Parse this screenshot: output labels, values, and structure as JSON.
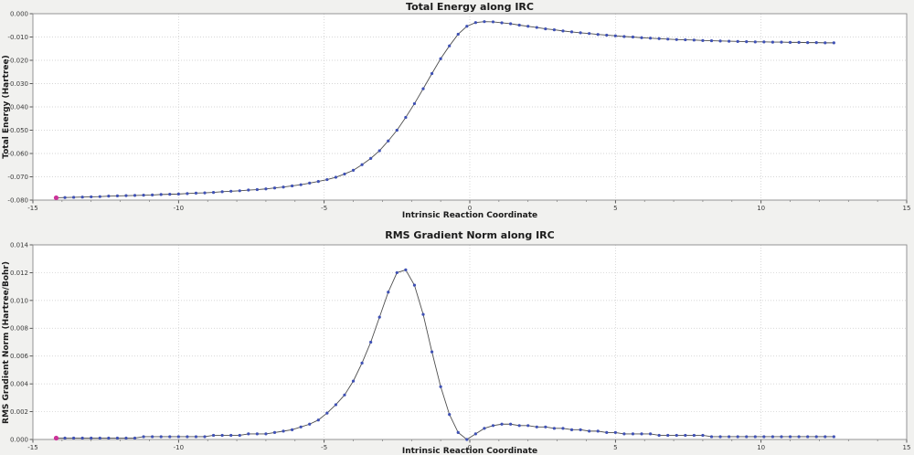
{
  "figure": {
    "background_color": "#f1f1ef",
    "plot_background_color": "#ffffff",
    "grid_color": "#c9c9c9",
    "spine_color": "#8a8a8a"
  },
  "chart_data": [
    {
      "id": "total-energy",
      "type": "line",
      "title": "Total Energy along IRC",
      "xlabel": "Intrinsic Reaction Coordinate",
      "ylabel": "Total Energy (Hartree)",
      "xlim": [
        -15,
        15
      ],
      "ylim": [
        -0.08,
        0.0
      ],
      "xtick_values": [
        -15,
        -10,
        -5,
        0,
        5,
        10,
        15
      ],
      "xtick_labels": [
        "-15",
        "-10",
        "-5",
        "0",
        "5",
        "10",
        "15"
      ],
      "ytick_values": [
        0.0,
        -0.01,
        -0.02,
        -0.03,
        -0.04,
        -0.05,
        -0.06,
        -0.07,
        -0.08
      ],
      "ytick_labels": [
        "0.000",
        "-0.010",
        "-0.020",
        "-0.030",
        "-0.040",
        "-0.050",
        "-0.060",
        "-0.070",
        "-0.080"
      ],
      "minor_xtick_step": 1,
      "grid": true,
      "legend": false,
      "line_color": "#4d4d4d",
      "marker_color": "#3f51b5",
      "first_point_color": "#cc3399",
      "x": [
        -14.2,
        -13.9,
        -13.6,
        -13.3,
        -13,
        -12.7,
        -12.4,
        -12.1,
        -11.8,
        -11.5,
        -11.2,
        -10.9,
        -10.6,
        -10.3,
        -10,
        -9.7,
        -9.4,
        -9.1,
        -8.8,
        -8.5,
        -8.2,
        -7.9,
        -7.6,
        -7.3,
        -7,
        -6.7,
        -6.4,
        -6.1,
        -5.8,
        -5.5,
        -5.2,
        -4.9,
        -4.6,
        -4.3,
        -4,
        -3.7,
        -3.4,
        -3.1,
        -2.8,
        -2.5,
        -2.2,
        -1.9,
        -1.6,
        -1.3,
        -1,
        -0.7,
        -0.4,
        -0.1,
        0.2,
        0.5,
        0.8,
        1.1,
        1.4,
        1.7,
        2,
        2.3,
        2.6,
        2.9,
        3.2,
        3.5,
        3.8,
        4.1,
        4.4,
        4.7,
        5,
        5.3,
        5.6,
        5.9,
        6.2,
        6.5,
        6.8,
        7.1,
        7.4,
        7.7,
        8,
        8.3,
        8.6,
        8.9,
        9.2,
        9.5,
        9.8,
        10.1,
        10.4,
        10.7,
        11,
        11.3,
        11.6,
        11.9,
        12.2,
        12.5
      ],
      "y": [
        -0.079,
        -0.0789,
        -0.0788,
        -0.0787,
        -0.0786,
        -0.0785,
        -0.0783,
        -0.0782,
        -0.0781,
        -0.078,
        -0.0779,
        -0.0778,
        -0.0776,
        -0.0775,
        -0.0774,
        -0.0772,
        -0.077,
        -0.0769,
        -0.0767,
        -0.0764,
        -0.0762,
        -0.076,
        -0.0757,
        -0.0755,
        -0.0752,
        -0.0748,
        -0.0744,
        -0.0739,
        -0.0734,
        -0.0727,
        -0.072,
        -0.0712,
        -0.0702,
        -0.0688,
        -0.0672,
        -0.0648,
        -0.0621,
        -0.0588,
        -0.0546,
        -0.05,
        -0.0445,
        -0.0386,
        -0.0322,
        -0.0257,
        -0.0193,
        -0.0138,
        -0.0088,
        -0.0054,
        -0.0038,
        -0.0034,
        -0.0035,
        -0.0039,
        -0.0043,
        -0.0049,
        -0.0054,
        -0.0059,
        -0.0065,
        -0.0069,
        -0.0074,
        -0.0078,
        -0.0082,
        -0.0085,
        -0.0089,
        -0.0092,
        -0.0095,
        -0.0098,
        -0.01,
        -0.0103,
        -0.0105,
        -0.0107,
        -0.0109,
        -0.0111,
        -0.0112,
        -0.0113,
        -0.0115,
        -0.0116,
        -0.0117,
        -0.0118,
        -0.0119,
        -0.012,
        -0.0121,
        -0.0121,
        -0.0122,
        -0.0122,
        -0.0123,
        -0.0123,
        -0.0124,
        -0.0124,
        -0.0125,
        -0.0125
      ]
    },
    {
      "id": "rms-gradient",
      "type": "line",
      "title": "RMS Gradient Norm along IRC",
      "xlabel": "Intrinsic Reaction Coordinate",
      "ylabel": "RMS Gradient Norm (Hartree/Bohr)",
      "xlim": [
        -15,
        15
      ],
      "ylim": [
        0.0,
        0.014
      ],
      "xtick_values": [
        -15,
        -10,
        -5,
        0,
        5,
        10,
        15
      ],
      "xtick_labels": [
        "-15",
        "-10",
        "-5",
        "0",
        "5",
        "10",
        "15"
      ],
      "ytick_values": [
        0.0,
        0.002,
        0.004,
        0.006,
        0.008,
        0.01,
        0.012,
        0.014
      ],
      "ytick_labels": [
        "0.000",
        "0.002",
        "0.004",
        "0.006",
        "0.008",
        "0.010",
        "0.012",
        "0.014"
      ],
      "minor_xtick_step": 1,
      "grid": true,
      "legend": false,
      "line_color": "#4d4d4d",
      "marker_color": "#3f51b5",
      "first_point_color": "#cc3399",
      "x": [
        -14.2,
        -13.9,
        -13.6,
        -13.3,
        -13,
        -12.7,
        -12.4,
        -12.1,
        -11.8,
        -11.5,
        -11.2,
        -10.9,
        -10.6,
        -10.3,
        -10,
        -9.7,
        -9.4,
        -9.1,
        -8.8,
        -8.5,
        -8.2,
        -7.9,
        -7.6,
        -7.3,
        -7,
        -6.7,
        -6.4,
        -6.1,
        -5.8,
        -5.5,
        -5.2,
        -4.9,
        -4.6,
        -4.3,
        -4,
        -3.7,
        -3.4,
        -3.1,
        -2.8,
        -2.5,
        -2.2,
        -1.9,
        -1.6,
        -1.3,
        -1,
        -0.7,
        -0.4,
        -0.1,
        0.2,
        0.5,
        0.8,
        1.1,
        1.4,
        1.7,
        2,
        2.3,
        2.6,
        2.9,
        3.2,
        3.5,
        3.8,
        4.1,
        4.4,
        4.7,
        5,
        5.3,
        5.6,
        5.9,
        6.2,
        6.5,
        6.8,
        7.1,
        7.4,
        7.7,
        8,
        8.3,
        8.6,
        8.9,
        9.2,
        9.5,
        9.8,
        10.1,
        10.4,
        10.7,
        11,
        11.3,
        11.6,
        11.9,
        12.2,
        12.5
      ],
      "y": [
        0.0001,
        0.0001,
        0.0001,
        0.0001,
        0.0001,
        0.0001,
        0.0001,
        0.0001,
        0.0001,
        0.0001,
        0.0002,
        0.0002,
        0.0002,
        0.0002,
        0.0002,
        0.0002,
        0.0002,
        0.0002,
        0.0003,
        0.0003,
        0.0003,
        0.0003,
        0.0004,
        0.0004,
        0.0004,
        0.0005,
        0.0006,
        0.0007,
        0.0009,
        0.0011,
        0.0014,
        0.0019,
        0.0025,
        0.0032,
        0.0042,
        0.0055,
        0.007,
        0.0088,
        0.0106,
        0.012,
        0.0122,
        0.0111,
        0.009,
        0.0063,
        0.0038,
        0.0018,
        0.0005,
        0.0,
        0.0004,
        0.0008,
        0.001,
        0.0011,
        0.0011,
        0.001,
        0.001,
        0.0009,
        0.0009,
        0.0008,
        0.0008,
        0.0007,
        0.0007,
        0.0006,
        0.0006,
        0.0005,
        0.0005,
        0.0004,
        0.0004,
        0.0004,
        0.0004,
        0.0003,
        0.0003,
        0.0003,
        0.0003,
        0.0003,
        0.0003,
        0.0002,
        0.0002,
        0.0002,
        0.0002,
        0.0002,
        0.0002,
        0.0002,
        0.0002,
        0.0002,
        0.0002,
        0.0002,
        0.0002,
        0.0002,
        0.0002,
        0.0002
      ]
    }
  ]
}
